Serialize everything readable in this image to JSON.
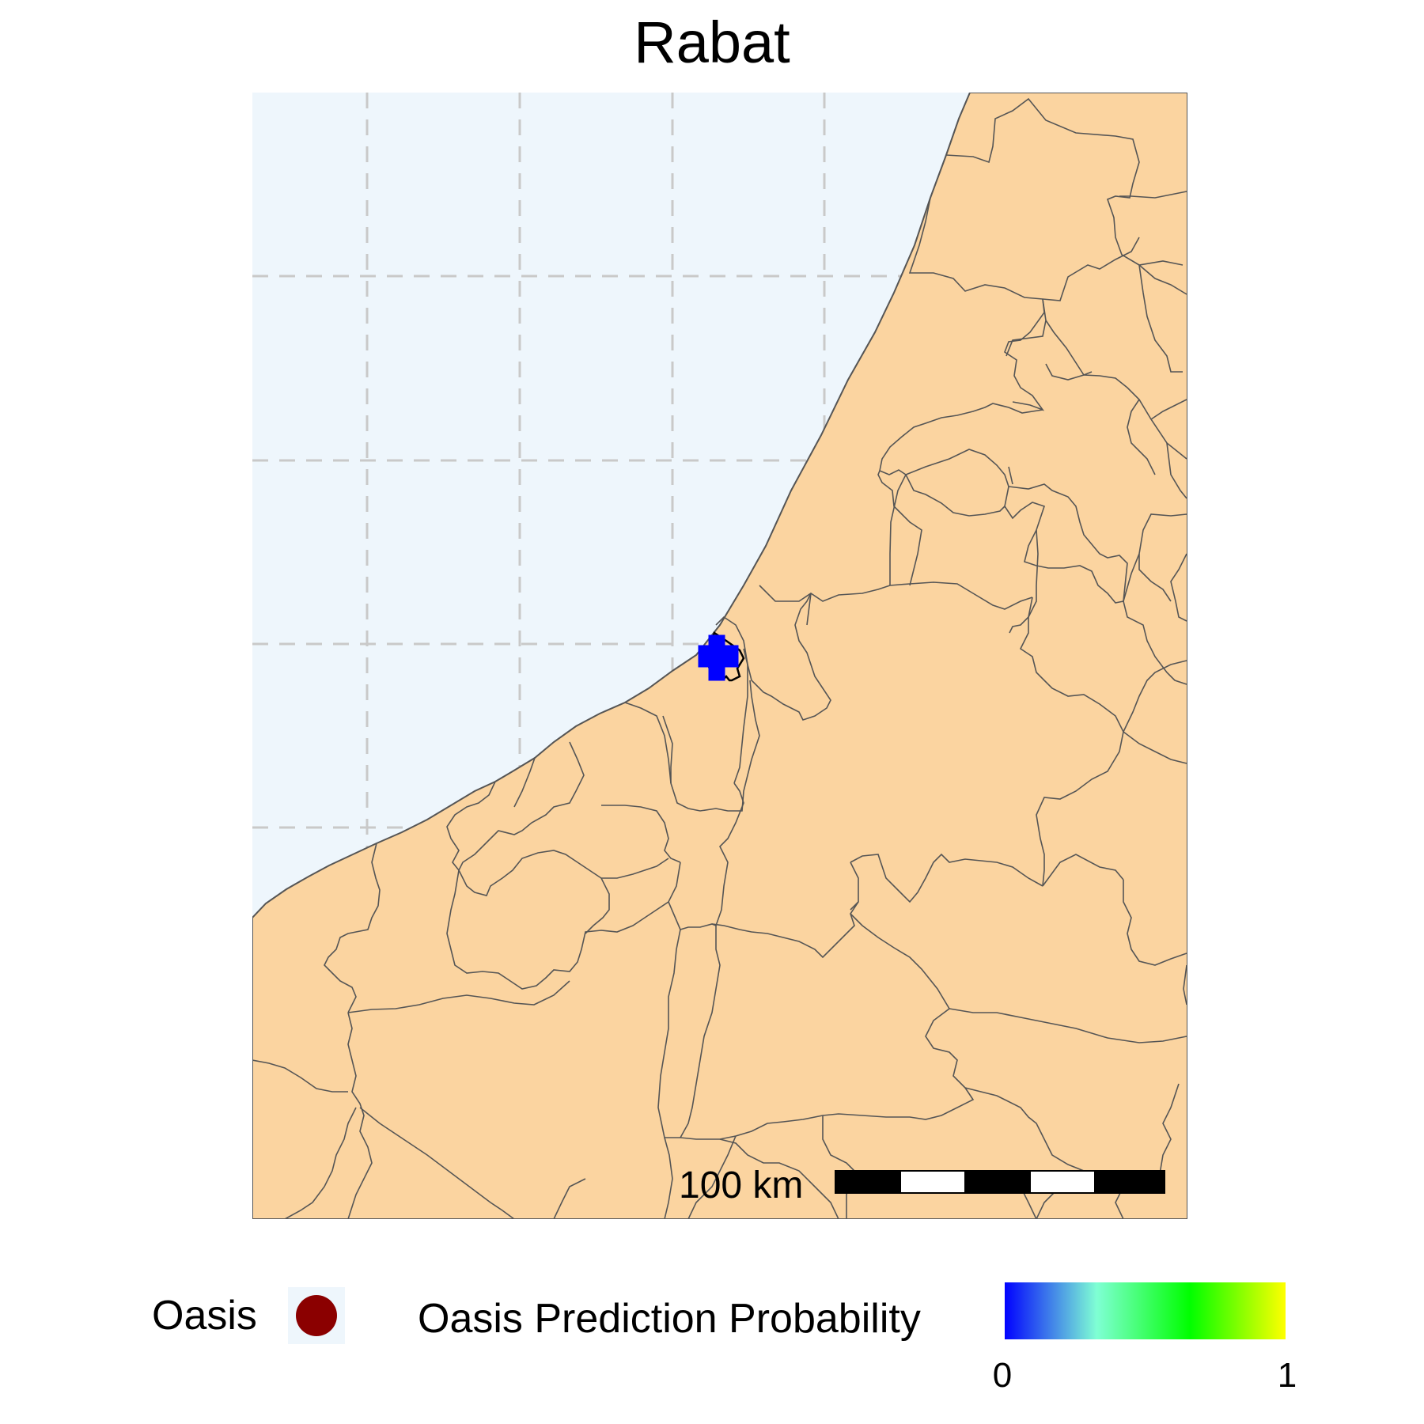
{
  "title": "Rabat",
  "colors": {
    "sea": "#eef6fc",
    "land": "#fbd4a0",
    "border": "#555555",
    "graticule": "#c9c9c9",
    "city_marker": "#0000ff",
    "oasis_point": "#8b0000"
  },
  "map": {
    "city": "Rabat",
    "city_marker_shape": "cross",
    "scale_bar": {
      "label": "100 km",
      "segments": 5
    },
    "graticule": "dashed"
  },
  "legend": {
    "oasis_label": "Oasis",
    "oasis_symbol": "circle",
    "probability_label": "Oasis Prediction Probability",
    "colorbar": {
      "min": "0",
      "max": "1",
      "gradient": [
        "#0000ff",
        "#7fffd4",
        "#00ff00",
        "#ffff00"
      ]
    }
  }
}
